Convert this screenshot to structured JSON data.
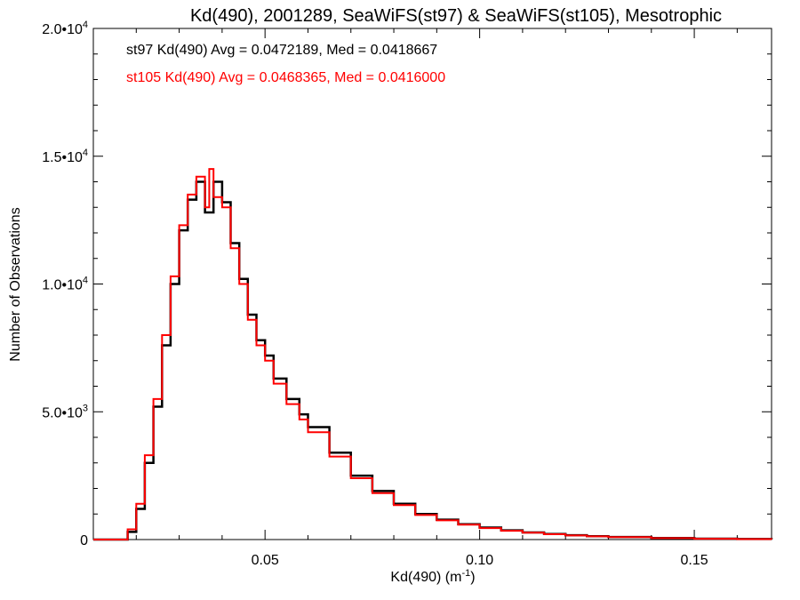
{
  "chart_data": {
    "type": "histogram",
    "title": "Kd(490), 2001289, SeaWiFS(st97) & SeaWiFS(st105), Mesotrophic",
    "xlabel": "Kd(490) (m",
    "xlabel_sup": "-1",
    "xlabel_suffix": ")",
    "ylabel": "Number of Observations",
    "xlim": [
      0.01,
      0.168
    ],
    "ylim": [
      0,
      20000
    ],
    "grid": false,
    "x_ticks": [
      {
        "value": 0.05,
        "label": "0.05"
      },
      {
        "value": 0.1,
        "label": "0.10"
      },
      {
        "value": 0.15,
        "label": "0.15"
      }
    ],
    "y_ticks": [
      {
        "value": 0,
        "label": "0",
        "sup": ""
      },
      {
        "value": 5000,
        "label": "5.0•10",
        "sup": "3"
      },
      {
        "value": 10000,
        "label": "1.0•10",
        "sup": "4"
      },
      {
        "value": 15000,
        "label": "1.5•10",
        "sup": "4"
      },
      {
        "value": 20000,
        "label": "2.0•10",
        "sup": "4"
      }
    ],
    "annotations": [
      {
        "text": "st97 Kd(490) Avg = 0.0472189, Med = 0.0418667",
        "color": "#000000"
      },
      {
        "text": "st105 Kd(490) Avg = 0.0468365, Med = 0.0416000",
        "color": "#ff0000"
      }
    ],
    "series": [
      {
        "id": "st97",
        "color": "#000000",
        "x": [
          0.01,
          0.016,
          0.018,
          0.02,
          0.022,
          0.024,
          0.026,
          0.028,
          0.03,
          0.032,
          0.034,
          0.036,
          0.038,
          0.04,
          0.042,
          0.044,
          0.046,
          0.048,
          0.05,
          0.052,
          0.055,
          0.058,
          0.06,
          0.065,
          0.07,
          0.075,
          0.08,
          0.085,
          0.09,
          0.095,
          0.1,
          0.105,
          0.11,
          0.115,
          0.12,
          0.125,
          0.13,
          0.14,
          0.15,
          0.16,
          0.168
        ],
        "y": [
          0,
          0,
          300,
          1200,
          3000,
          5200,
          7600,
          10000,
          12100,
          13300,
          14000,
          12800,
          14000,
          13200,
          11600,
          10200,
          8800,
          7800,
          7200,
          6300,
          5500,
          4900,
          4400,
          3400,
          2500,
          1900,
          1400,
          1000,
          780,
          600,
          470,
          360,
          280,
          220,
          170,
          130,
          100,
          60,
          35,
          20,
          10
        ]
      },
      {
        "id": "st105",
        "color": "#ff0000",
        "x": [
          0.01,
          0.016,
          0.018,
          0.02,
          0.022,
          0.024,
          0.026,
          0.028,
          0.03,
          0.032,
          0.034,
          0.036,
          0.037,
          0.038,
          0.04,
          0.042,
          0.044,
          0.046,
          0.048,
          0.05,
          0.052,
          0.055,
          0.058,
          0.06,
          0.065,
          0.07,
          0.075,
          0.08,
          0.085,
          0.09,
          0.095,
          0.1,
          0.105,
          0.11,
          0.115,
          0.12,
          0.125,
          0.13,
          0.14,
          0.15,
          0.16,
          0.168
        ],
        "y": [
          0,
          0,
          400,
          1400,
          3300,
          5500,
          8000,
          10300,
          12300,
          13500,
          14200,
          13000,
          14500,
          13400,
          13000,
          11400,
          10000,
          8600,
          7600,
          7000,
          6100,
          5300,
          4700,
          4200,
          3250,
          2400,
          1820,
          1350,
          960,
          750,
          580,
          450,
          345,
          270,
          210,
          160,
          125,
          95,
          55,
          32,
          18,
          9
        ]
      }
    ]
  }
}
